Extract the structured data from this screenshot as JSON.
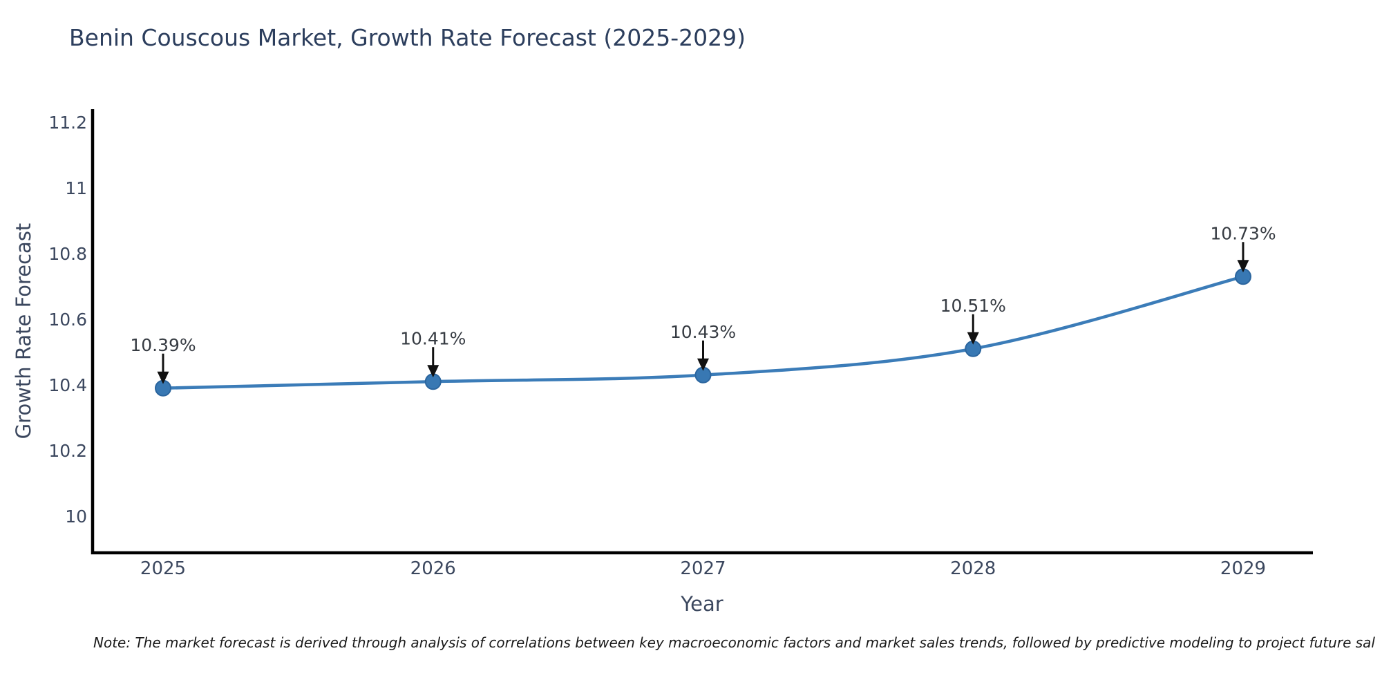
{
  "chart_data": {
    "type": "line",
    "title": "Benin Couscous Market, Growth Rate Forecast (2025-2029)",
    "xlabel": "Year",
    "ylabel": "Growth Rate Forecast",
    "x": [
      2025,
      2026,
      2027,
      2028,
      2029
    ],
    "series": [
      {
        "name": "Growth Rate Forecast",
        "values": [
          10.39,
          10.41,
          10.43,
          10.51,
          10.73
        ]
      }
    ],
    "point_labels": [
      "10.39%",
      "10.41%",
      "10.43%",
      "10.51%",
      "10.73%"
    ],
    "xtick_labels": [
      "2025",
      "2026",
      "2027",
      "2028",
      "2029"
    ],
    "yticks": [
      10,
      10.2,
      10.4,
      10.6,
      10.8,
      11,
      11.2
    ],
    "ytick_labels": [
      "10",
      "10.2",
      "10.4",
      "10.6",
      "10.8",
      "11",
      "11.2"
    ],
    "xlim": [
      2024.74,
      2029.26
    ],
    "ylim": [
      9.89,
      11.24
    ],
    "grid": false,
    "legend": "none",
    "line_shape": "spline",
    "note": "Note: The market forecast is derived through analysis of correlations between key macroeconomic factors and market sales trends, followed by predictive modeling to project future sal",
    "colors": {
      "line": "#3b7cb8",
      "marker": "#3878b3",
      "marker_edge": "#2b659e",
      "arrow": "#111111",
      "axis": "#000000",
      "title_text": "#2c3e5d",
      "tick_text": "#3b475e",
      "annotation_text": "#363b42",
      "background": "#ffffff"
    }
  }
}
